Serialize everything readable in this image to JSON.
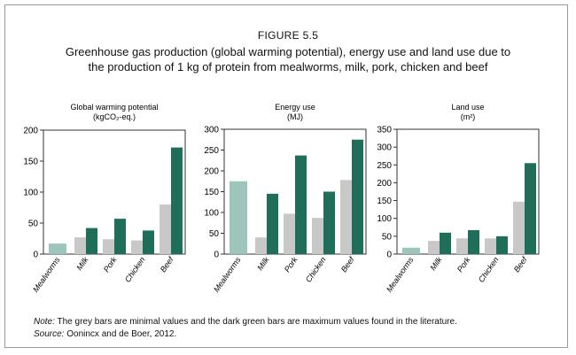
{
  "figure": {
    "label": "FIGURE 5.5",
    "title_line1": "Greenhouse gas production (global warming potential), energy use and land use due to",
    "title_line2": "the production of 1 kg of protein from mealworms, milk, pork, chicken and beef"
  },
  "note": {
    "note_prefix": "Note:",
    "note_text": "The grey bars are minimal values and the dark green bars are maximum values found in the literature.",
    "source_prefix": "Source:",
    "source_text": "Oonincx and de Boer, 2012."
  },
  "colors": {
    "mealworm_bar": "#9ec5bc",
    "min_bar": "#c8c8c8",
    "max_bar": "#1e6e5a",
    "axis": "#333333"
  },
  "chart_data": [
    {
      "type": "bar",
      "title": "Global warming potential",
      "subtitle": "(kgCO₂-eq.)",
      "categories": [
        "Mealworms",
        "Milk",
        "Pork",
        "Chicken",
        "Beef"
      ],
      "series": [
        {
          "name": "Minimal values",
          "values": [
            17,
            27,
            24,
            22,
            80
          ]
        },
        {
          "name": "Maximum values",
          "values": [
            null,
            42,
            57,
            38,
            172
          ]
        }
      ],
      "ylim": [
        0,
        200
      ],
      "yticks": [
        "0",
        "50",
        "100",
        "150",
        "200"
      ],
      "xlabel": "",
      "ylabel": ""
    },
    {
      "type": "bar",
      "title": "Energy use",
      "subtitle": "(MJ)",
      "categories": [
        "Mealworms",
        "Milk",
        "Pork",
        "Chicken",
        "Beef"
      ],
      "series": [
        {
          "name": "Minimal values",
          "values": [
            175,
            40,
            97,
            87,
            178
          ]
        },
        {
          "name": "Maximum values",
          "values": [
            null,
            145,
            237,
            150,
            275
          ]
        }
      ],
      "ylim": [
        0,
        300
      ],
      "yticks": [
        "0",
        "50",
        "100",
        "150",
        "200",
        "250",
        "300"
      ],
      "xlabel": "",
      "ylabel": ""
    },
    {
      "type": "bar",
      "title": "Land use",
      "subtitle": "(m²)",
      "categories": [
        "Mealworms",
        "Milk",
        "Pork",
        "Chicken",
        "Beef"
      ],
      "series": [
        {
          "name": "Minimal values",
          "values": [
            18,
            37,
            44,
            44,
            147
          ]
        },
        {
          "name": "Maximum values",
          "values": [
            null,
            60,
            67,
            50,
            255
          ]
        }
      ],
      "ylim": [
        0,
        350
      ],
      "yticks": [
        "0",
        "50",
        "100",
        "150",
        "200",
        "250",
        "300",
        "350"
      ],
      "xlabel": "",
      "ylabel": ""
    }
  ]
}
